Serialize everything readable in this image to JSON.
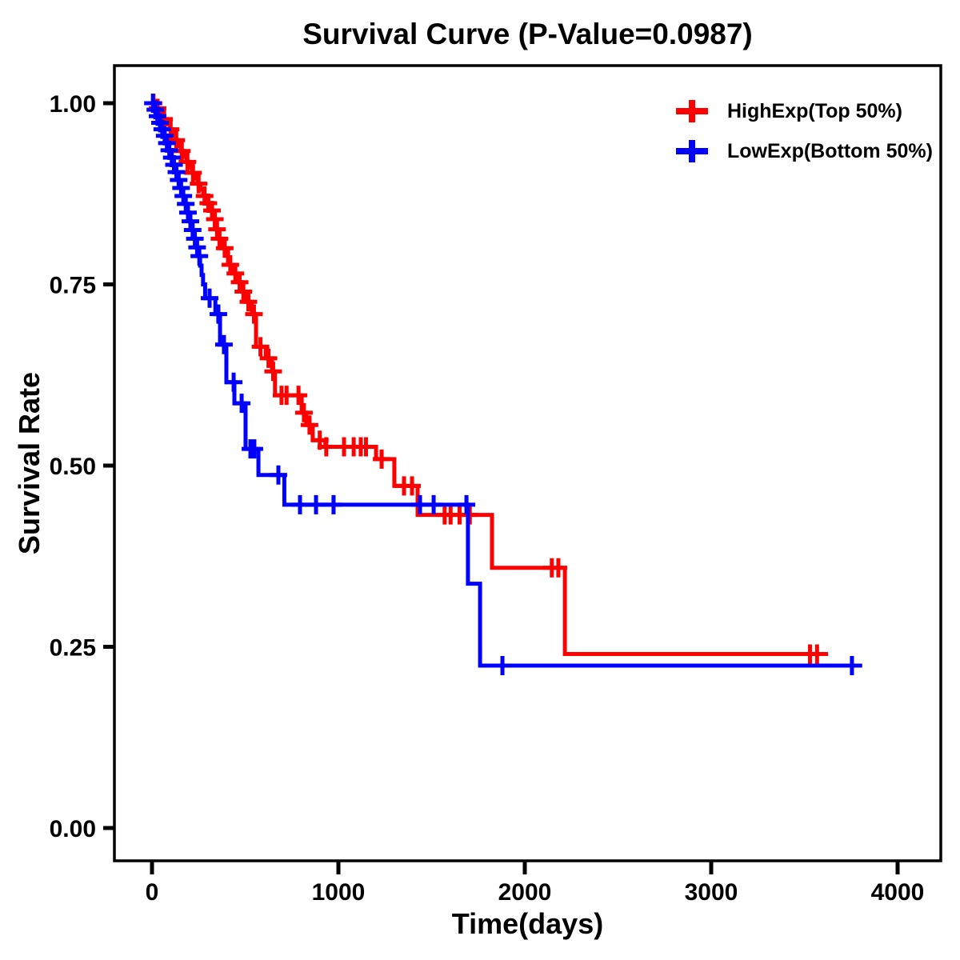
{
  "page": {
    "background": "#FFFFFF"
  },
  "chart_data": {
    "type": "line",
    "subtype": "kaplan_meier_step_curve",
    "title": "Survival Curve (P-Value=0.0987)",
    "p_value": "0.0987",
    "xlabel": "Time(days)",
    "ylabel": "Survival Rate",
    "xlim": [
      0,
      4000
    ],
    "ylim": [
      0,
      1
    ],
    "xticks": [
      0,
      1000,
      2000,
      3000,
      4000
    ],
    "xtick_labels": [
      "0",
      "1000",
      "2000",
      "3000",
      "4000"
    ],
    "yticks": [
      0,
      0.25,
      0.5,
      0.75,
      1
    ],
    "ytick_labels": [
      "0.00",
      "0.25",
      "0.50",
      "0.75",
      "1.00"
    ],
    "grid": false,
    "legend_position": "top-right-inside",
    "axis_color": "#000000",
    "marker": "plus-censor-tick",
    "series": [
      {
        "name": "HighExp(Top 50%)",
        "key": "highexp",
        "color": "#FF0000",
        "end_day": 3627,
        "steps": [
          [
            0,
            1
          ],
          [
            20,
            0.993
          ],
          [
            40,
            0.986
          ],
          [
            60,
            0.978
          ],
          [
            80,
            0.971
          ],
          [
            95,
            0.964
          ],
          [
            110,
            0.956
          ],
          [
            125,
            0.949
          ],
          [
            140,
            0.941
          ],
          [
            155,
            0.934
          ],
          [
            170,
            0.926
          ],
          [
            185,
            0.919
          ],
          [
            200,
            0.911
          ],
          [
            215,
            0.904
          ],
          [
            230,
            0.896
          ],
          [
            245,
            0.889
          ],
          [
            260,
            0.881
          ],
          [
            275,
            0.872
          ],
          [
            295,
            0.862
          ],
          [
            315,
            0.852
          ],
          [
            330,
            0.84
          ],
          [
            343,
            0.826
          ],
          [
            355,
            0.813
          ],
          [
            370,
            0.8
          ],
          [
            408,
            0.777
          ],
          [
            435,
            0.765
          ],
          [
            459,
            0.753
          ],
          [
            480,
            0.74
          ],
          [
            502,
            0.726
          ],
          [
            536,
            0.709
          ],
          [
            558,
            0.664
          ],
          [
            610,
            0.648
          ],
          [
            644,
            0.63
          ],
          [
            660,
            0.597
          ],
          [
            803,
            0.573
          ],
          [
            828,
            0.556
          ],
          [
            862,
            0.535
          ],
          [
            930,
            0.526
          ],
          [
            1202,
            0.509
          ],
          [
            1300,
            0.472
          ],
          [
            1425,
            0.432
          ],
          [
            1824,
            0.359
          ],
          [
            2215,
            0.24
          ]
        ],
        "censors": [
          [
            8,
            1
          ],
          [
            30,
            0.993
          ],
          [
            65,
            0.978
          ],
          [
            100,
            0.964
          ],
          [
            130,
            0.949
          ],
          [
            160,
            0.934
          ],
          [
            190,
            0.919
          ],
          [
            220,
            0.904
          ],
          [
            250,
            0.889
          ],
          [
            282,
            0.872
          ],
          [
            302,
            0.862
          ],
          [
            322,
            0.852
          ],
          [
            337,
            0.84
          ],
          [
            349,
            0.826
          ],
          [
            362,
            0.813
          ],
          [
            390,
            0.8
          ],
          [
            420,
            0.777
          ],
          [
            447,
            0.765
          ],
          [
            470,
            0.753
          ],
          [
            490,
            0.74
          ],
          [
            517,
            0.726
          ],
          [
            547,
            0.709
          ],
          [
            582,
            0.664
          ],
          [
            625,
            0.648
          ],
          [
            650,
            0.63
          ],
          [
            695,
            0.597
          ],
          [
            722,
            0.597
          ],
          [
            786,
            0.597
          ],
          [
            815,
            0.573
          ],
          [
            845,
            0.556
          ],
          [
            900,
            0.535
          ],
          [
            935,
            0.526
          ],
          [
            1030,
            0.526
          ],
          [
            1082,
            0.526
          ],
          [
            1120,
            0.526
          ],
          [
            1148,
            0.526
          ],
          [
            1232,
            0.509
          ],
          [
            1352,
            0.472
          ],
          [
            1395,
            0.472
          ],
          [
            1570,
            0.432
          ],
          [
            1602,
            0.432
          ],
          [
            1650,
            0.432
          ],
          [
            1705,
            0.432
          ],
          [
            2145,
            0.359
          ],
          [
            2180,
            0.359
          ],
          [
            3530,
            0.24
          ],
          [
            3568,
            0.24
          ]
        ]
      },
      {
        "name": "LowExp(Bottom 50%)",
        "key": "lowexp",
        "color": "#0000FF",
        "end_day": 3810,
        "steps": [
          [
            0,
            1
          ],
          [
            12,
            0.991
          ],
          [
            25,
            0.982
          ],
          [
            38,
            0.973
          ],
          [
            50,
            0.964
          ],
          [
            63,
            0.955
          ],
          [
            75,
            0.945
          ],
          [
            88,
            0.935
          ],
          [
            100,
            0.925
          ],
          [
            113,
            0.915
          ],
          [
            125,
            0.905
          ],
          [
            138,
            0.894
          ],
          [
            150,
            0.883
          ],
          [
            163,
            0.872
          ],
          [
            175,
            0.861
          ],
          [
            188,
            0.849
          ],
          [
            200,
            0.837
          ],
          [
            212,
            0.825
          ],
          [
            224,
            0.813
          ],
          [
            236,
            0.801
          ],
          [
            249,
            0.789
          ],
          [
            258,
            0.776
          ],
          [
            266,
            0.763
          ],
          [
            274,
            0.75
          ],
          [
            285,
            0.731
          ],
          [
            340,
            0.709
          ],
          [
            365,
            0.667
          ],
          [
            399,
            0.615
          ],
          [
            442,
            0.586
          ],
          [
            502,
            0.523
          ],
          [
            571,
            0.487
          ],
          [
            710,
            0.446
          ],
          [
            1695,
            0.337
          ],
          [
            1760,
            0.224
          ]
        ],
        "censors": [
          [
            5,
            1
          ],
          [
            18,
            0.991
          ],
          [
            30,
            0.982
          ],
          [
            43,
            0.973
          ],
          [
            55,
            0.964
          ],
          [
            68,
            0.955
          ],
          [
            80,
            0.945
          ],
          [
            93,
            0.935
          ],
          [
            106,
            0.925
          ],
          [
            118,
            0.915
          ],
          [
            131,
            0.905
          ],
          [
            143,
            0.894
          ],
          [
            156,
            0.883
          ],
          [
            168,
            0.872
          ],
          [
            181,
            0.861
          ],
          [
            193,
            0.849
          ],
          [
            206,
            0.837
          ],
          [
            218,
            0.825
          ],
          [
            230,
            0.813
          ],
          [
            242,
            0.801
          ],
          [
            254,
            0.789
          ],
          [
            309,
            0.731
          ],
          [
            356,
            0.709
          ],
          [
            386,
            0.667
          ],
          [
            438,
            0.615
          ],
          [
            481,
            0.586
          ],
          [
            528,
            0.523
          ],
          [
            549,
            0.523
          ],
          [
            678,
            0.487
          ],
          [
            794,
            0.446
          ],
          [
            880,
            0.446
          ],
          [
            974,
            0.446
          ],
          [
            1438,
            0.446
          ],
          [
            1511,
            0.446
          ],
          [
            1687,
            0.446
          ],
          [
            1880,
            0.224
          ],
          [
            3755,
            0.224
          ]
        ]
      }
    ]
  }
}
